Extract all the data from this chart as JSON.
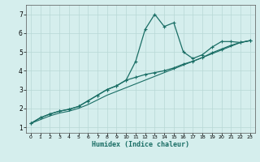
{
  "title": "",
  "xlabel": "Humidex (Indice chaleur)",
  "ylabel": "",
  "background_color": "#d5eeed",
  "grid_color": "#b8d8d5",
  "line_color": "#1a6e65",
  "xlim": [
    -0.5,
    23.5
  ],
  "ylim": [
    0.7,
    7.5
  ],
  "xticks": [
    0,
    1,
    2,
    3,
    4,
    5,
    6,
    7,
    8,
    9,
    10,
    11,
    12,
    13,
    14,
    15,
    16,
    17,
    18,
    19,
    20,
    21,
    22,
    23
  ],
  "yticks": [
    1,
    2,
    3,
    4,
    5,
    6,
    7
  ],
  "line1_x": [
    0,
    1,
    2,
    3,
    4,
    5,
    6,
    7,
    8,
    9,
    10,
    11,
    12,
    13,
    14,
    15,
    16,
    17,
    18,
    19,
    20,
    21,
    22,
    23
  ],
  "line1_y": [
    1.2,
    1.5,
    1.7,
    1.85,
    1.95,
    2.1,
    2.4,
    2.7,
    3.0,
    3.2,
    3.5,
    4.5,
    6.2,
    7.0,
    6.35,
    6.55,
    5.0,
    4.65,
    4.85,
    5.25,
    5.55,
    5.55,
    5.5,
    5.6
  ],
  "line2_x": [
    0,
    1,
    2,
    3,
    4,
    5,
    6,
    7,
    8,
    9,
    10,
    11,
    12,
    13,
    14,
    15,
    16,
    17,
    18,
    19,
    20,
    21,
    22,
    23
  ],
  "line2_y": [
    1.2,
    1.5,
    1.7,
    1.85,
    1.95,
    2.1,
    2.4,
    2.7,
    3.0,
    3.2,
    3.5,
    3.65,
    3.8,
    3.9,
    4.0,
    4.15,
    4.35,
    4.5,
    4.7,
    4.95,
    5.15,
    5.35,
    5.5,
    5.6
  ],
  "line3_x": [
    0,
    1,
    2,
    3,
    4,
    5,
    6,
    7,
    8,
    9,
    10,
    11,
    12,
    13,
    14,
    15,
    16,
    17,
    18,
    19,
    20,
    21,
    22,
    23
  ],
  "line3_y": [
    1.2,
    1.4,
    1.6,
    1.75,
    1.85,
    2.0,
    2.2,
    2.45,
    2.7,
    2.9,
    3.1,
    3.3,
    3.5,
    3.7,
    3.9,
    4.1,
    4.3,
    4.5,
    4.7,
    4.9,
    5.1,
    5.3,
    5.5,
    5.6
  ]
}
